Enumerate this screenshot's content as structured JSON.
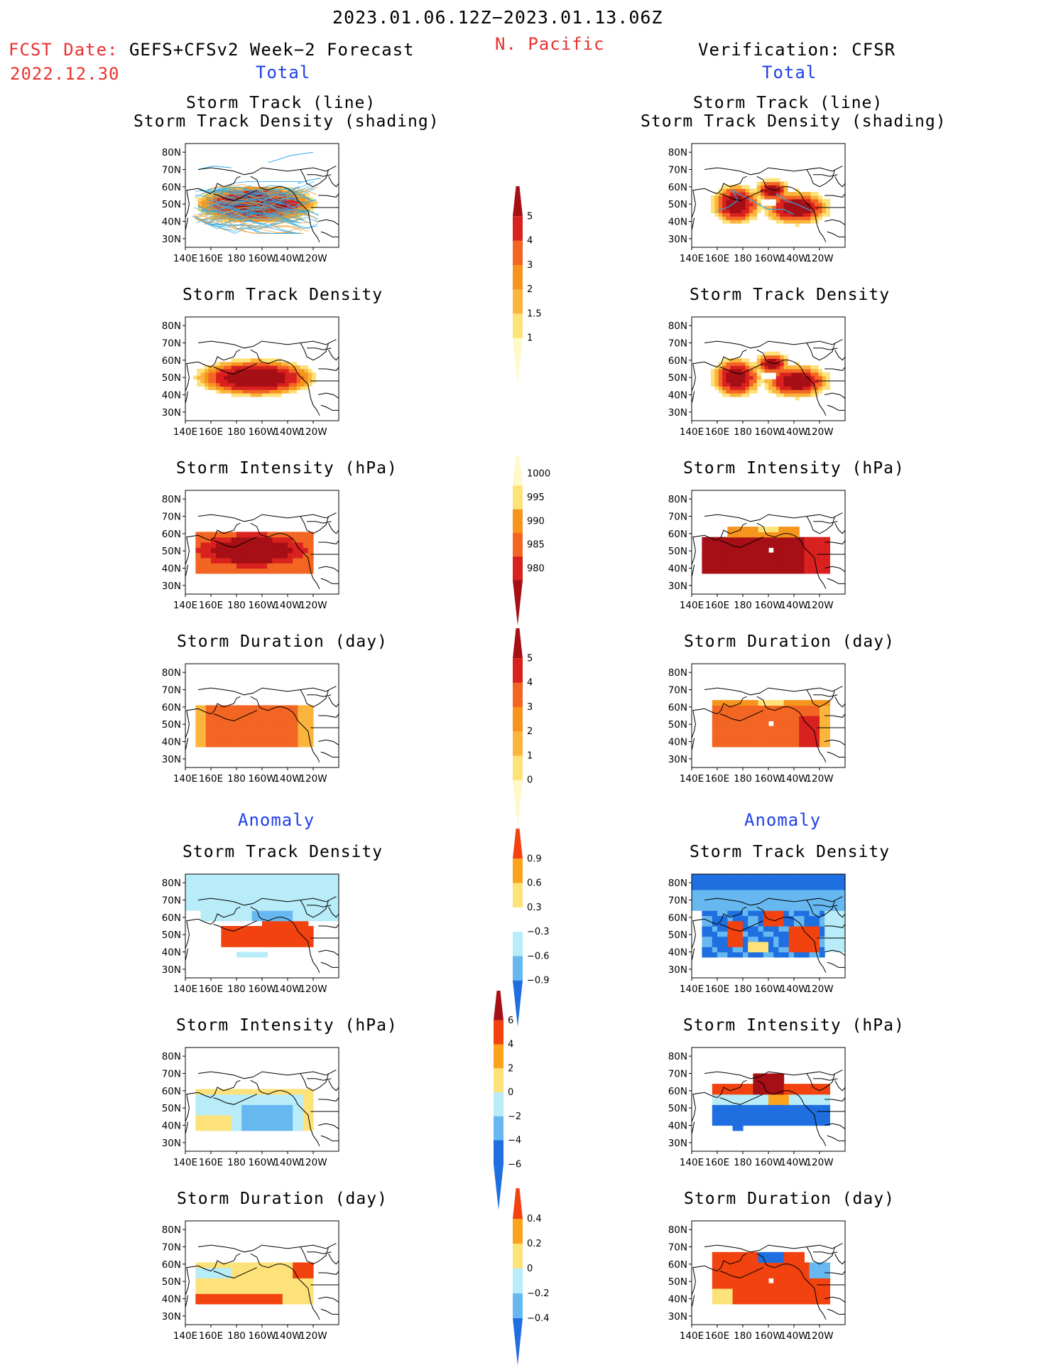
{
  "header": {
    "date_range": "2023.01.06.12Z−2023.01.13.06Z",
    "region": "N. Pacific",
    "fcst_date_label": "FCST Date:",
    "fcst_model": "GEFS+CFSv2 Week−2 Forecast",
    "fcst_date": "2022.12.30",
    "verification": "Verification: CFSR"
  },
  "sections": {
    "total": "Total",
    "anomaly": "Anomaly"
  },
  "panel_titles": {
    "track_line": "Storm Track (line)",
    "track_density_shading": "Storm Track Density (shading)",
    "track_density": "Storm Track Density",
    "intensity": "Storm Intensity (hPa)",
    "duration": "Storm Duration (day)"
  },
  "axes": {
    "lat_labels": [
      "80N",
      "70N",
      "60N",
      "50N",
      "40N",
      "30N"
    ],
    "lon_labels": [
      "140E",
      "160E",
      "180",
      "160W",
      "140W",
      "120W"
    ]
  },
  "colorbars": {
    "track_density_total": [
      "5",
      "4",
      "3",
      "2",
      "1.5",
      "1"
    ],
    "intensity_total": [
      "1000",
      "995",
      "990",
      "985",
      "980"
    ],
    "duration_total": [
      "5",
      "4",
      "3",
      "2",
      "1",
      "0"
    ],
    "track_density_anom": [
      "0.9",
      "0.6",
      "0.3",
      "−0.3",
      "−0.6",
      "−0.9"
    ],
    "intensity_anom": [
      "6",
      "4",
      "2",
      "0",
      "−2",
      "−4",
      "−6"
    ],
    "duration_anom": [
      "0.4",
      "0.2",
      "0",
      "−0.2",
      "−0.4"
    ]
  },
  "colors": {
    "warm": [
      "#fff8c8",
      "#fde27a",
      "#fbb53c",
      "#f7941d",
      "#f26522",
      "#d9211f",
      "#a50f15"
    ],
    "anom_warm": [
      "#fde27a",
      "#fca31e",
      "#f2420f"
    ],
    "anom_cold": [
      "#b8ecf8",
      "#67b8f0",
      "#1f6fe0"
    ],
    "track_blue": "#2aa9e8",
    "track_orange": "#f0a030"
  }
}
